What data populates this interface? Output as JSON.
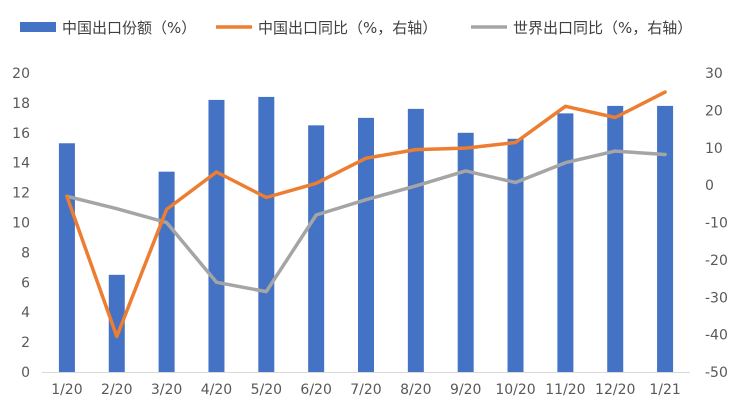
{
  "chart_data": {
    "type": "bar",
    "categories": [
      "1/20",
      "2/20",
      "3/20",
      "4/20",
      "5/20",
      "6/20",
      "7/20",
      "8/20",
      "9/20",
      "10/20",
      "11/20",
      "12/20",
      "1/21"
    ],
    "series": [
      {
        "name": "中国出口份额（%）",
        "type": "bar",
        "axis": "left",
        "color": "#4472C4",
        "values": [
          15.3,
          6.5,
          13.4,
          18.2,
          18.4,
          16.5,
          17.0,
          17.6,
          16.0,
          15.6,
          17.3,
          17.8,
          17.8
        ]
      },
      {
        "name": "中国出口同比（%，右轴）",
        "type": "line",
        "axis": "right",
        "color": "#ED7D31",
        "values": [
          -3.0,
          -40.5,
          -6.5,
          3.5,
          -3.3,
          0.5,
          7.2,
          9.5,
          9.9,
          11.4,
          21.1,
          18.1,
          24.9
        ]
      },
      {
        "name": "世界出口同比（%，右轴）",
        "type": "line",
        "axis": "right",
        "color": "#A5A5A5",
        "values": [
          -3.0,
          -6.3,
          -10.0,
          -26.0,
          -28.5,
          -8.0,
          -3.9,
          -0.2,
          3.8,
          0.7,
          6.0,
          9.1,
          8.2
        ]
      }
    ],
    "ylim_left": [
      0,
      20
    ],
    "yticks_left": [
      "0",
      "2",
      "4",
      "6",
      "8",
      "10",
      "12",
      "14",
      "16",
      "18",
      "20"
    ],
    "ylim_right": [
      -50,
      30
    ],
    "yticks_right": [
      "-50",
      "-40",
      "-30",
      "-20",
      "-10",
      "0",
      "10",
      "20",
      "30"
    ],
    "grid": false,
    "legend_position": "top"
  }
}
